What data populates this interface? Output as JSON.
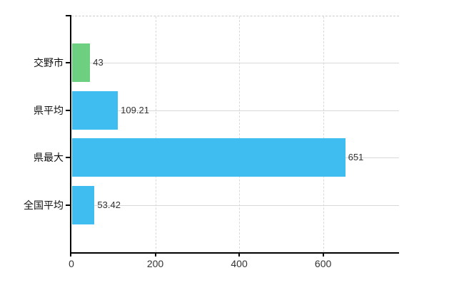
{
  "chart_data": {
    "type": "bar",
    "orientation": "horizontal",
    "title": "",
    "categories": [
      "交野市",
      "県平均",
      "県最大",
      "全国平均"
    ],
    "values": [
      43,
      109.21,
      651,
      53.42
    ],
    "value_labels": [
      "43",
      "109.21",
      "651",
      "53.42"
    ],
    "bar_colors": [
      "#6cd080",
      "#40bdf0",
      "#40bdf0",
      "#40bdf0"
    ],
    "x_ticks": [
      0,
      200,
      400,
      600
    ],
    "x_tick_labels": [
      "0",
      "200",
      "400",
      "600"
    ],
    "xlim": [
      0,
      781
    ],
    "grid": true,
    "legend": false,
    "grid_color": "#d9d9d9",
    "axis_color": "#000000",
    "plot_top_border_style": "dashed"
  }
}
